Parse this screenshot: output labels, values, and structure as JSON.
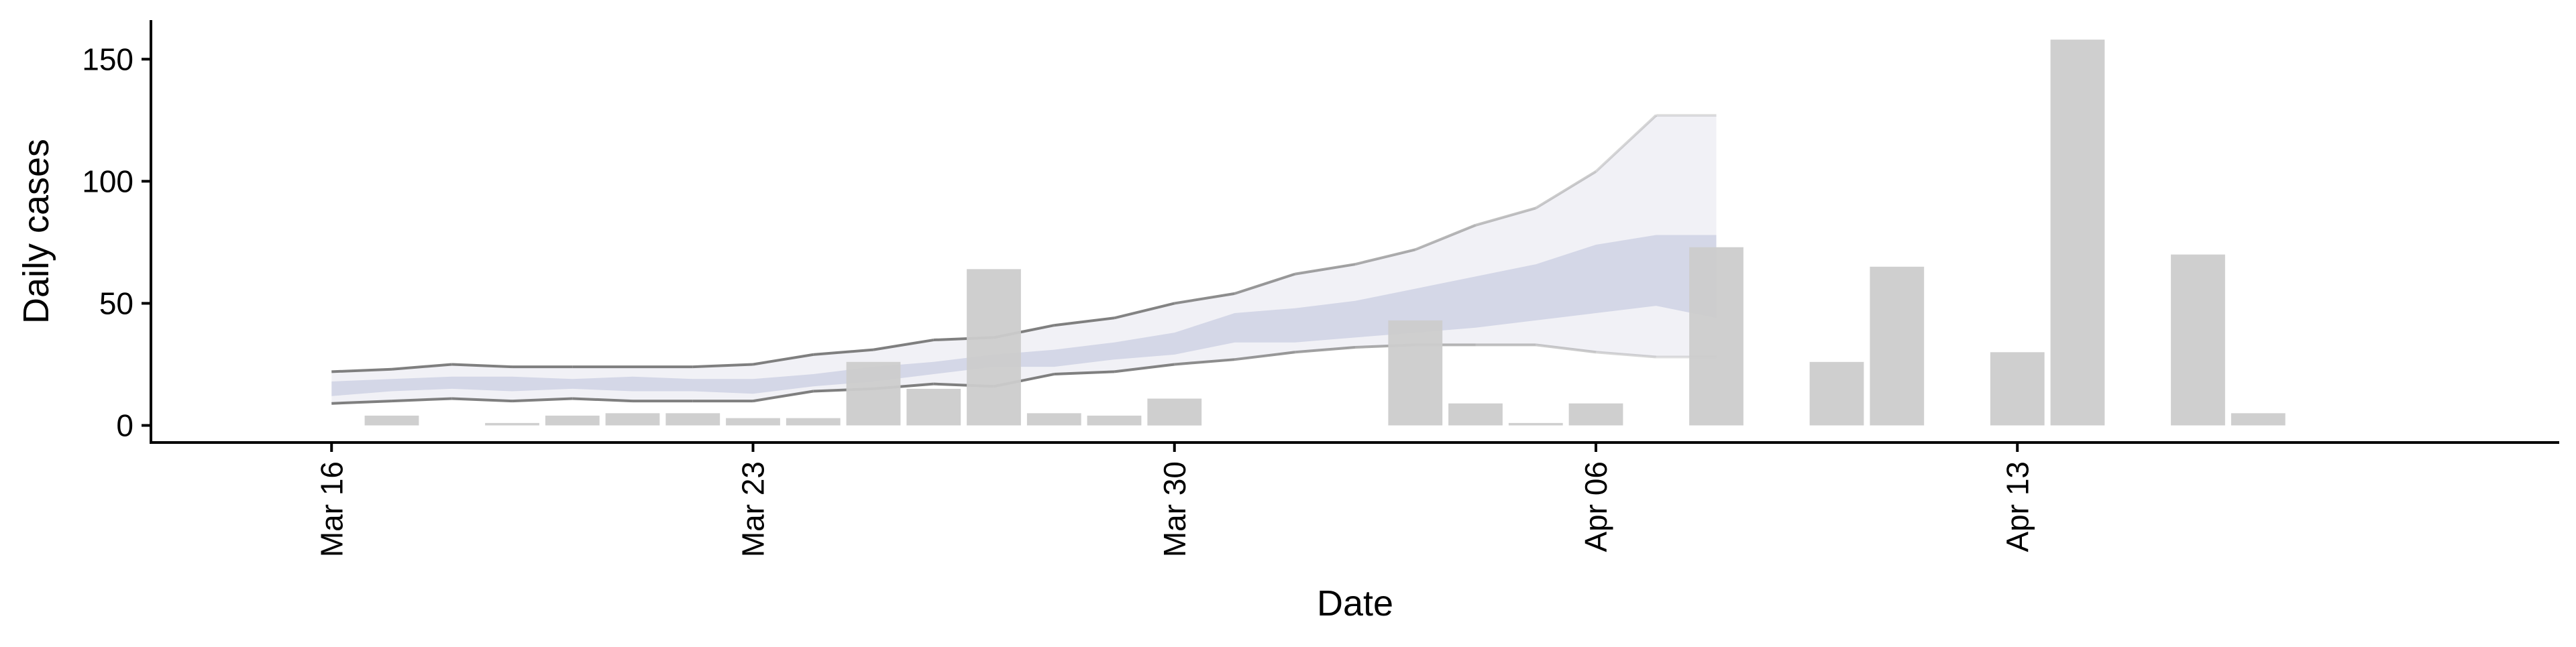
{
  "chart_data": {
    "type": "bar",
    "title": "",
    "xlabel": "Date",
    "ylabel": "Daily cases",
    "x_tick_labels": [
      "Mar 16",
      "Mar 23",
      "Mar 30",
      "Apr 06",
      "Apr 13"
    ],
    "x_tick_dates": [
      "2020-03-16",
      "2020-03-23",
      "2020-03-30",
      "2020-04-06",
      "2020-04-13"
    ],
    "y_ticks": [
      0,
      50,
      100,
      150
    ],
    "ylim": [
      -7,
      166
    ],
    "xlim": [
      "2020-03-13",
      "2020-04-22"
    ],
    "grid": false,
    "legend": "none",
    "colors": {
      "bars": "#cccccc",
      "band_outer": "#eeeff5",
      "band_inner": "#c9cde1",
      "bound_line": "#7f7f7f"
    },
    "series": [
      {
        "kind": "bars",
        "points": [
          {
            "date": "2020-03-17",
            "value": 4
          },
          {
            "date": "2020-03-19",
            "value": 1
          },
          {
            "date": "2020-03-20",
            "value": 4
          },
          {
            "date": "2020-03-21",
            "value": 5
          },
          {
            "date": "2020-03-22",
            "value": 5
          },
          {
            "date": "2020-03-23",
            "value": 3
          },
          {
            "date": "2020-03-24",
            "value": 3
          },
          {
            "date": "2020-03-25",
            "value": 26
          },
          {
            "date": "2020-03-26",
            "value": 15
          },
          {
            "date": "2020-03-27",
            "value": 64
          },
          {
            "date": "2020-03-28",
            "value": 5
          },
          {
            "date": "2020-03-29",
            "value": 4
          },
          {
            "date": "2020-03-30",
            "value": 11
          },
          {
            "date": "2020-04-03",
            "value": 43
          },
          {
            "date": "2020-04-04",
            "value": 9
          },
          {
            "date": "2020-04-05",
            "value": 1
          },
          {
            "date": "2020-04-06",
            "value": 9
          },
          {
            "date": "2020-04-08",
            "value": 73
          },
          {
            "date": "2020-04-10",
            "value": 26
          },
          {
            "date": "2020-04-11",
            "value": 65
          },
          {
            "date": "2020-04-13",
            "value": 30
          },
          {
            "date": "2020-04-14",
            "value": 158
          },
          {
            "date": "2020-04-16",
            "value": 70
          },
          {
            "date": "2020-04-17",
            "value": 5
          }
        ]
      },
      {
        "kind": "ribbon",
        "dates": [
          "2020-03-16",
          "2020-03-17",
          "2020-03-18",
          "2020-03-19",
          "2020-03-20",
          "2020-03-21",
          "2020-03-22",
          "2020-03-23",
          "2020-03-24",
          "2020-03-25",
          "2020-03-26",
          "2020-03-27",
          "2020-03-28",
          "2020-03-29",
          "2020-03-30",
          "2020-03-31",
          "2020-04-01",
          "2020-04-02",
          "2020-04-03",
          "2020-04-04",
          "2020-04-05",
          "2020-04-06",
          "2020-04-07",
          "2020-04-08"
        ],
        "upper_90": [
          22,
          23,
          25,
          24,
          24,
          24,
          24,
          25,
          29,
          31,
          35,
          36,
          41,
          44,
          50,
          54,
          62,
          66,
          72,
          82,
          89,
          104,
          127,
          127
        ],
        "upper_50": [
          18,
          19,
          20,
          20,
          19,
          20,
          19,
          19,
          21,
          24,
          26,
          29,
          31,
          34,
          38,
          46,
          48,
          51,
          56,
          61,
          66,
          74,
          78,
          78
        ],
        "lower_50": [
          12,
          14,
          15,
          14,
          15,
          14,
          14,
          13,
          16,
          18,
          21,
          24,
          24,
          27,
          29,
          34,
          34,
          36,
          38,
          40,
          43,
          46,
          49,
          44
        ],
        "lower_90": [
          9,
          10,
          11,
          10,
          11,
          10,
          10,
          10,
          14,
          15,
          17,
          16,
          21,
          22,
          25,
          27,
          30,
          32,
          33,
          33,
          33,
          30,
          28,
          28
        ]
      }
    ]
  }
}
